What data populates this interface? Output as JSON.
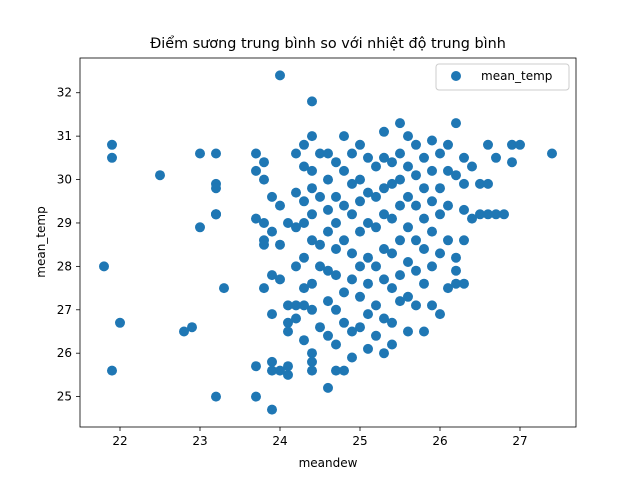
{
  "chart_data": {
    "type": "scatter",
    "title": "Điểm sương trung bình so với nhiệt độ trung bình",
    "xlabel": "meandew",
    "ylabel": "mean_temp",
    "xlim": [
      21.5,
      27.7
    ],
    "ylim": [
      24.3,
      32.8
    ],
    "xticks": [
      22,
      23,
      24,
      25,
      26,
      27
    ],
    "yticks": [
      25,
      26,
      27,
      28,
      29,
      30,
      31,
      32
    ],
    "grid": false,
    "legend_position": "top-right",
    "series": [
      {
        "name": "mean_temp",
        "color": "#1f77b4",
        "points": [
          [
            21.8,
            28.0
          ],
          [
            21.9,
            30.8
          ],
          [
            21.9,
            30.5
          ],
          [
            21.9,
            25.6
          ],
          [
            22.0,
            26.7
          ],
          [
            22.5,
            30.1
          ],
          [
            22.8,
            26.5
          ],
          [
            22.9,
            26.6
          ],
          [
            23.0,
            30.6
          ],
          [
            23.0,
            28.9
          ],
          [
            23.2,
            30.6
          ],
          [
            23.2,
            29.9
          ],
          [
            23.2,
            29.8
          ],
          [
            23.2,
            29.2
          ],
          [
            23.2,
            29.2
          ],
          [
            23.2,
            29.2
          ],
          [
            23.2,
            25.0
          ],
          [
            23.3,
            27.5
          ],
          [
            23.7,
            30.6
          ],
          [
            23.7,
            30.2
          ],
          [
            23.7,
            29.1
          ],
          [
            23.7,
            25.7
          ],
          [
            23.7,
            25.0
          ],
          [
            23.8,
            30.4
          ],
          [
            23.8,
            30.0
          ],
          [
            23.8,
            29.0
          ],
          [
            23.8,
            28.6
          ],
          [
            23.8,
            28.5
          ],
          [
            23.8,
            27.5
          ],
          [
            23.9,
            29.6
          ],
          [
            23.9,
            28.8
          ],
          [
            23.9,
            27.8
          ],
          [
            23.9,
            26.9
          ],
          [
            23.9,
            25.8
          ],
          [
            23.9,
            25.6
          ],
          [
            23.9,
            24.7
          ],
          [
            24.0,
            32.4
          ],
          [
            24.0,
            29.4
          ],
          [
            24.0,
            28.5
          ],
          [
            24.0,
            27.7
          ],
          [
            24.0,
            25.6
          ],
          [
            24.1,
            29.0
          ],
          [
            24.1,
            27.1
          ],
          [
            24.1,
            26.7
          ],
          [
            24.1,
            26.5
          ],
          [
            24.1,
            25.5
          ],
          [
            24.1,
            25.7
          ],
          [
            24.2,
            30.6
          ],
          [
            24.2,
            29.7
          ],
          [
            24.2,
            28.9
          ],
          [
            24.2,
            28.0
          ],
          [
            24.2,
            27.1
          ],
          [
            24.2,
            26.8
          ],
          [
            24.3,
            30.8
          ],
          [
            24.3,
            30.3
          ],
          [
            24.3,
            29.5
          ],
          [
            24.3,
            29.0
          ],
          [
            24.3,
            28.2
          ],
          [
            24.3,
            27.5
          ],
          [
            24.3,
            27.1
          ],
          [
            24.3,
            26.3
          ],
          [
            24.4,
            31.8
          ],
          [
            24.4,
            31.0
          ],
          [
            24.4,
            30.2
          ],
          [
            24.4,
            29.8
          ],
          [
            24.4,
            29.2
          ],
          [
            24.4,
            28.6
          ],
          [
            24.4,
            27.6
          ],
          [
            24.4,
            27.0
          ],
          [
            24.4,
            26.0
          ],
          [
            24.4,
            25.8
          ],
          [
            24.4,
            25.6
          ],
          [
            24.5,
            30.6
          ],
          [
            24.5,
            29.6
          ],
          [
            24.5,
            28.5
          ],
          [
            24.5,
            28.0
          ],
          [
            24.5,
            26.6
          ],
          [
            24.6,
            30.6
          ],
          [
            24.6,
            30.0
          ],
          [
            24.6,
            29.3
          ],
          [
            24.6,
            28.8
          ],
          [
            24.6,
            27.9
          ],
          [
            24.6,
            27.2
          ],
          [
            24.6,
            26.4
          ],
          [
            24.6,
            25.2
          ],
          [
            24.7,
            30.4
          ],
          [
            24.7,
            29.6
          ],
          [
            24.7,
            29.0
          ],
          [
            24.7,
            28.4
          ],
          [
            24.7,
            27.8
          ],
          [
            24.7,
            27.0
          ],
          [
            24.7,
            26.2
          ],
          [
            24.7,
            25.6
          ],
          [
            24.8,
            31.0
          ],
          [
            24.8,
            30.2
          ],
          [
            24.8,
            29.4
          ],
          [
            24.8,
            28.6
          ],
          [
            24.8,
            27.4
          ],
          [
            24.8,
            26.7
          ],
          [
            24.8,
            25.6
          ],
          [
            24.9,
            30.6
          ],
          [
            24.9,
            29.9
          ],
          [
            24.9,
            29.2
          ],
          [
            24.9,
            28.3
          ],
          [
            24.9,
            27.7
          ],
          [
            24.9,
            26.5
          ],
          [
            24.9,
            25.9
          ],
          [
            25.0,
            30.8
          ],
          [
            25.0,
            30.0
          ],
          [
            25.0,
            29.5
          ],
          [
            25.0,
            28.8
          ],
          [
            25.0,
            28.0
          ],
          [
            25.0,
            27.3
          ],
          [
            25.0,
            26.6
          ],
          [
            25.1,
            30.5
          ],
          [
            25.1,
            29.7
          ],
          [
            25.1,
            29.0
          ],
          [
            25.1,
            28.2
          ],
          [
            25.1,
            27.6
          ],
          [
            25.1,
            26.9
          ],
          [
            25.1,
            26.1
          ],
          [
            25.2,
            30.3
          ],
          [
            25.2,
            29.6
          ],
          [
            25.2,
            28.9
          ],
          [
            25.2,
            28.0
          ],
          [
            25.2,
            27.1
          ],
          [
            25.2,
            26.4
          ],
          [
            25.3,
            31.1
          ],
          [
            25.3,
            30.5
          ],
          [
            25.3,
            29.8
          ],
          [
            25.3,
            29.2
          ],
          [
            25.3,
            28.4
          ],
          [
            25.3,
            27.7
          ],
          [
            25.3,
            26.8
          ],
          [
            25.3,
            26.0
          ],
          [
            25.4,
            30.4
          ],
          [
            25.4,
            29.9
          ],
          [
            25.4,
            29.1
          ],
          [
            25.4,
            28.3
          ],
          [
            25.4,
            27.5
          ],
          [
            25.4,
            26.7
          ],
          [
            25.4,
            26.2
          ],
          [
            25.5,
            31.3
          ],
          [
            25.5,
            30.6
          ],
          [
            25.5,
            30.0
          ],
          [
            25.5,
            29.4
          ],
          [
            25.5,
            28.6
          ],
          [
            25.5,
            27.8
          ],
          [
            25.5,
            27.2
          ],
          [
            25.6,
            31.0
          ],
          [
            25.6,
            30.3
          ],
          [
            25.6,
            29.6
          ],
          [
            25.6,
            28.9
          ],
          [
            25.6,
            28.1
          ],
          [
            25.6,
            27.3
          ],
          [
            25.6,
            26.5
          ],
          [
            25.7,
            30.8
          ],
          [
            25.7,
            30.1
          ],
          [
            25.7,
            29.4
          ],
          [
            25.7,
            28.6
          ],
          [
            25.7,
            27.9
          ],
          [
            25.7,
            27.1
          ],
          [
            25.8,
            30.5
          ],
          [
            25.8,
            29.8
          ],
          [
            25.8,
            29.1
          ],
          [
            25.8,
            28.4
          ],
          [
            25.8,
            27.6
          ],
          [
            25.8,
            26.5
          ],
          [
            25.9,
            30.9
          ],
          [
            25.9,
            30.2
          ],
          [
            25.9,
            29.5
          ],
          [
            25.9,
            28.8
          ],
          [
            25.9,
            28.0
          ],
          [
            25.9,
            27.1
          ],
          [
            26.0,
            30.6
          ],
          [
            26.0,
            29.8
          ],
          [
            26.0,
            29.2
          ],
          [
            26.0,
            28.3
          ],
          [
            26.0,
            26.9
          ],
          [
            26.1,
            30.8
          ],
          [
            26.1,
            30.2
          ],
          [
            26.1,
            29.4
          ],
          [
            26.1,
            28.6
          ],
          [
            26.1,
            27.5
          ],
          [
            26.2,
            31.3
          ],
          [
            26.2,
            30.1
          ],
          [
            26.2,
            28.2
          ],
          [
            26.2,
            27.6
          ],
          [
            26.2,
            27.9
          ],
          [
            26.3,
            30.5
          ],
          [
            26.3,
            29.9
          ],
          [
            26.3,
            29.3
          ],
          [
            26.3,
            28.6
          ],
          [
            26.3,
            27.6
          ],
          [
            26.4,
            30.3
          ],
          [
            26.4,
            29.1
          ],
          [
            26.5,
            29.2
          ],
          [
            26.5,
            29.9
          ],
          [
            26.6,
            30.8
          ],
          [
            26.6,
            29.2
          ],
          [
            26.6,
            29.9
          ],
          [
            26.7,
            30.5
          ],
          [
            26.7,
            29.2
          ],
          [
            26.8,
            29.2
          ],
          [
            26.9,
            30.8
          ],
          [
            26.9,
            30.4
          ],
          [
            27.0,
            30.8
          ],
          [
            27.4,
            30.6
          ]
        ]
      }
    ]
  }
}
